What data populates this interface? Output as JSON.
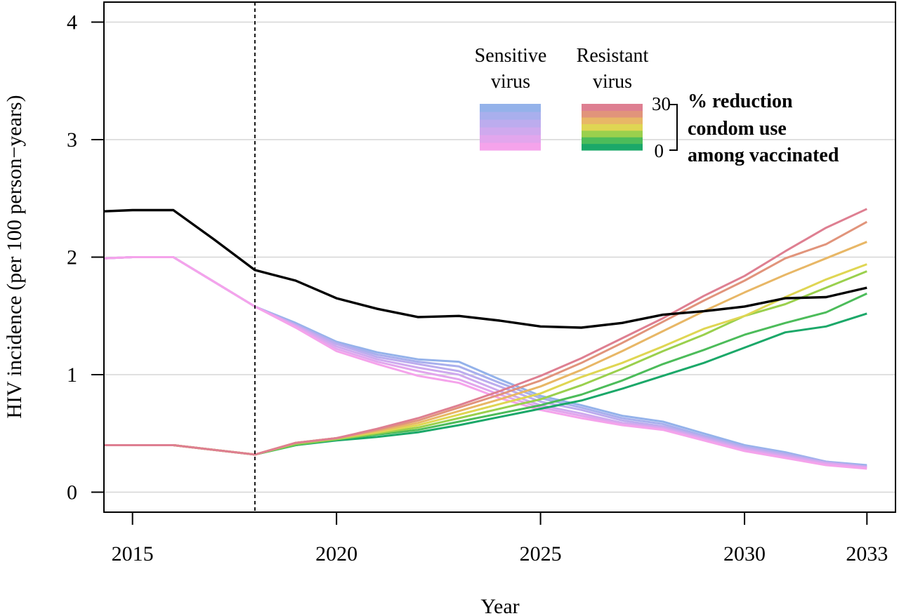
{
  "chart_data": {
    "type": "line",
    "xlabel": "Year",
    "ylabel": "HIV incidence (per 100 person−years)",
    "xlim": [
      2014.3,
      2033.7
    ],
    "ylim": [
      -0.17,
      4.17
    ],
    "x_ticks": [
      2015,
      2020,
      2025,
      2030,
      2033
    ],
    "x_tick_labels": [
      "2015",
      "2020",
      "2025",
      "2030",
      "2033"
    ],
    "y_ticks": [
      0,
      1,
      2,
      3,
      4
    ],
    "y_tick_labels": [
      "0",
      "1",
      "2",
      "3",
      "4"
    ],
    "grid": "horizontal",
    "vertical_marker": {
      "x": 2018,
      "style": "dashed"
    },
    "legend": {
      "placement": "top-right",
      "sensitive_header": [
        "Sensitive",
        "virus"
      ],
      "resistant_header": [
        "Resistant",
        "virus"
      ],
      "scale_max_label": "30",
      "scale_min_label": "0",
      "scale_title": [
        "% reduction",
        "condom use",
        "among vaccinated"
      ],
      "sensitive_colors": [
        "#f5a3eb",
        "#e2a6ed",
        "#cfa9ee",
        "#bcacee",
        "#a9afed",
        "#94b2ea"
      ],
      "resistant_colors": [
        "#1ba869",
        "#4cbc5a",
        "#9ad04d",
        "#dfd653",
        "#e8b766",
        "#e1947b",
        "#de7f91"
      ]
    },
    "x": [
      2014.3,
      2015,
      2016,
      2017,
      2018,
      2019,
      2020,
      2021,
      2022,
      2023,
      2024,
      2025,
      2026,
      2027,
      2028,
      2029,
      2030,
      2031,
      2032,
      2033
    ],
    "series": [
      {
        "role": "total",
        "color": "#000000",
        "values": [
          2.39,
          2.4,
          2.4,
          2.15,
          1.89,
          1.8,
          1.65,
          1.56,
          1.49,
          1.5,
          1.46,
          1.41,
          1.4,
          1.44,
          1.51,
          1.54,
          1.58,
          1.65,
          1.66,
          1.74
        ]
      },
      {
        "role": "sensitive",
        "color": "#94b2ea",
        "values": [
          1.99,
          2.0,
          2.0,
          1.79,
          1.58,
          1.44,
          1.28,
          1.19,
          1.13,
          1.11,
          0.96,
          0.82,
          0.74,
          0.65,
          0.6,
          0.5,
          0.4,
          0.34,
          0.26,
          0.23
        ]
      },
      {
        "role": "sensitive",
        "color": "#a9afed",
        "values": [
          1.99,
          2.0,
          2.0,
          1.79,
          1.58,
          1.43,
          1.27,
          1.17,
          1.11,
          1.07,
          0.93,
          0.8,
          0.72,
          0.63,
          0.58,
          0.48,
          0.39,
          0.33,
          0.26,
          0.22
        ]
      },
      {
        "role": "sensitive",
        "color": "#bcacee",
        "values": [
          1.99,
          2.0,
          2.0,
          1.79,
          1.58,
          1.42,
          1.26,
          1.15,
          1.09,
          1.03,
          0.9,
          0.77,
          0.7,
          0.61,
          0.56,
          0.47,
          0.38,
          0.32,
          0.25,
          0.22
        ]
      },
      {
        "role": "sensitive",
        "color": "#cfa9ee",
        "values": [
          1.99,
          2.0,
          2.0,
          1.79,
          1.58,
          1.42,
          1.24,
          1.13,
          1.06,
          1.0,
          0.86,
          0.74,
          0.67,
          0.59,
          0.55,
          0.46,
          0.37,
          0.31,
          0.25,
          0.21
        ]
      },
      {
        "role": "sensitive",
        "color": "#e2a6ed",
        "values": [
          1.99,
          2.0,
          2.0,
          1.79,
          1.58,
          1.41,
          1.22,
          1.11,
          1.03,
          0.96,
          0.83,
          0.72,
          0.65,
          0.58,
          0.54,
          0.45,
          0.36,
          0.3,
          0.24,
          0.21
        ]
      },
      {
        "role": "sensitive",
        "color": "#f5a3eb",
        "values": [
          1.99,
          2.0,
          2.0,
          1.79,
          1.58,
          1.4,
          1.2,
          1.09,
          0.99,
          0.93,
          0.8,
          0.7,
          0.63,
          0.57,
          0.53,
          0.44,
          0.35,
          0.29,
          0.23,
          0.2
        ]
      },
      {
        "role": "resistant",
        "color": "#1ba869",
        "values": [
          0.4,
          0.4,
          0.4,
          0.36,
          0.32,
          0.4,
          0.44,
          0.47,
          0.51,
          0.57,
          0.64,
          0.71,
          0.78,
          0.88,
          0.99,
          1.1,
          1.23,
          1.36,
          1.41,
          1.52
        ]
      },
      {
        "role": "resistant",
        "color": "#4cbc5a",
        "values": [
          0.4,
          0.4,
          0.4,
          0.36,
          0.32,
          0.4,
          0.45,
          0.49,
          0.53,
          0.6,
          0.67,
          0.74,
          0.83,
          0.95,
          1.09,
          1.21,
          1.34,
          1.44,
          1.53,
          1.69
        ]
      },
      {
        "role": "resistant",
        "color": "#9ad04d",
        "values": [
          0.4,
          0.4,
          0.4,
          0.36,
          0.32,
          0.41,
          0.45,
          0.5,
          0.55,
          0.63,
          0.71,
          0.79,
          0.91,
          1.05,
          1.2,
          1.34,
          1.5,
          1.6,
          1.74,
          1.88
        ]
      },
      {
        "role": "resistant",
        "color": "#dfd653",
        "values": [
          0.4,
          0.4,
          0.4,
          0.36,
          0.32,
          0.42,
          0.46,
          0.51,
          0.57,
          0.66,
          0.75,
          0.84,
          0.98,
          1.1,
          1.24,
          1.39,
          1.5,
          1.66,
          1.81,
          1.94
        ]
      },
      {
        "role": "resistant",
        "color": "#e8b766",
        "values": [
          0.4,
          0.4,
          0.4,
          0.36,
          0.32,
          0.42,
          0.46,
          0.52,
          0.59,
          0.69,
          0.79,
          0.9,
          1.04,
          1.2,
          1.37,
          1.54,
          1.7,
          1.85,
          1.99,
          2.13
        ]
      },
      {
        "role": "resistant",
        "color": "#e1947b",
        "values": [
          0.4,
          0.4,
          0.4,
          0.36,
          0.32,
          0.42,
          0.46,
          0.53,
          0.61,
          0.72,
          0.83,
          0.95,
          1.1,
          1.27,
          1.45,
          1.63,
          1.8,
          1.99,
          2.11,
          2.3
        ]
      },
      {
        "role": "resistant",
        "color": "#de7f91",
        "values": [
          0.4,
          0.4,
          0.4,
          0.36,
          0.32,
          0.42,
          0.46,
          0.54,
          0.63,
          0.74,
          0.86,
          0.99,
          1.14,
          1.31,
          1.48,
          1.67,
          1.84,
          2.05,
          2.25,
          2.41
        ]
      }
    ]
  }
}
